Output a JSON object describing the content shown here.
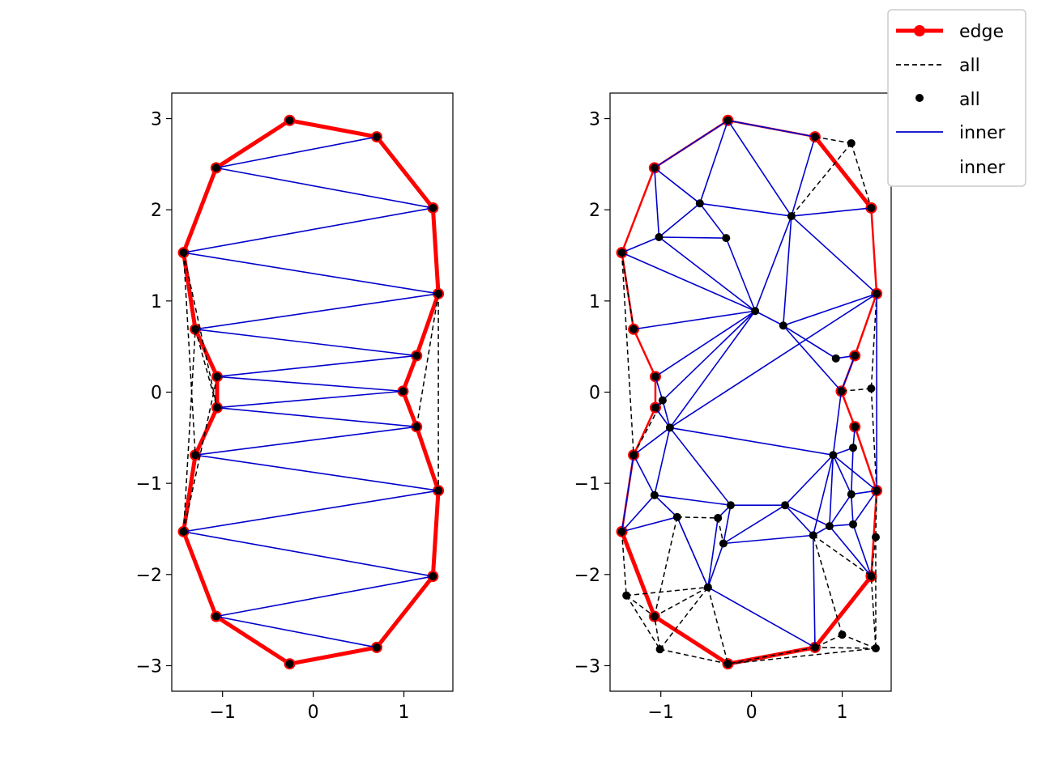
{
  "colors": {
    "edge": "#ff0000",
    "all": "#000000",
    "inner": "#0000cc",
    "background": "#ffffff",
    "legend_border": "#cccccc"
  },
  "legend": {
    "placement": "top-right",
    "entries": [
      {
        "label": "edge",
        "style": "thick-red-line-with-markers"
      },
      {
        "label": "all",
        "style": "dashed-black-line"
      },
      {
        "label": "all",
        "style": "black-dot"
      },
      {
        "label": "inner",
        "style": "thin-blue-line"
      },
      {
        "label": "inner",
        "style": "none"
      }
    ]
  },
  "chart_data": [
    {
      "type": "line",
      "title": "",
      "xlabel": "",
      "ylabel": "",
      "xlim": [
        -1.56,
        1.54
      ],
      "ylim": [
        -3.28,
        3.28
      ],
      "xticks": [
        -1,
        0,
        1
      ],
      "yticks": [
        -3,
        -2,
        -1,
        0,
        1,
        2,
        3
      ],
      "grid": false,
      "points": [
        [
          -0.26,
          2.98
        ],
        [
          0.7,
          2.8
        ],
        [
          1.32,
          2.02
        ],
        [
          1.38,
          1.08
        ],
        [
          1.14,
          0.4
        ],
        [
          0.99,
          0.01
        ],
        [
          1.14,
          -0.38
        ],
        [
          1.38,
          -1.08
        ],
        [
          1.32,
          -2.02
        ],
        [
          0.7,
          -2.8
        ],
        [
          -0.26,
          -2.98
        ],
        [
          -1.07,
          -2.46
        ],
        [
          -1.43,
          -1.53
        ],
        [
          -1.3,
          -0.69
        ],
        [
          -1.06,
          -0.17
        ],
        [
          -1.06,
          0.17
        ],
        [
          -1.3,
          0.69
        ],
        [
          -1.43,
          1.53
        ],
        [
          -1.07,
          2.46
        ]
      ],
      "edge_path": [
        0,
        1,
        2,
        3,
        4,
        5,
        6,
        7,
        8,
        9,
        10,
        11,
        12,
        13,
        14,
        15,
        16,
        17,
        18,
        0
      ],
      "all_segments": [
        [
          17,
          13
        ],
        [
          17,
          14
        ],
        [
          16,
          14
        ],
        [
          3,
          6
        ],
        [
          3,
          7
        ],
        [
          12,
          15
        ],
        [
          12,
          16
        ]
      ],
      "inner_segments": [
        [
          18,
          1
        ],
        [
          18,
          2
        ],
        [
          17,
          2
        ],
        [
          17,
          3
        ],
        [
          16,
          3
        ],
        [
          16,
          4
        ],
        [
          15,
          4
        ],
        [
          15,
          5
        ],
        [
          14,
          5
        ],
        [
          14,
          6
        ],
        [
          13,
          6
        ],
        [
          13,
          7
        ],
        [
          12,
          7
        ],
        [
          12,
          8
        ],
        [
          11,
          8
        ],
        [
          11,
          9
        ]
      ]
    },
    {
      "type": "line",
      "title": "",
      "xlabel": "",
      "ylabel": "",
      "xlim": [
        -1.56,
        1.54
      ],
      "ylim": [
        -3.28,
        3.28
      ],
      "xticks": [
        -1,
        0,
        1
      ],
      "yticks": [
        -3,
        -2,
        -1,
        0,
        1,
        2,
        3
      ],
      "grid": false,
      "points": [
        [
          -0.26,
          2.98
        ],
        [
          0.7,
          2.8
        ],
        [
          1.32,
          2.02
        ],
        [
          1.38,
          1.08
        ],
        [
          1.14,
          0.4
        ],
        [
          0.99,
          0.01
        ],
        [
          1.14,
          -0.38
        ],
        [
          1.38,
          -1.08
        ],
        [
          1.32,
          -2.02
        ],
        [
          0.7,
          -2.8
        ],
        [
          -0.26,
          -2.98
        ],
        [
          -1.07,
          -2.46
        ],
        [
          -1.43,
          -1.53
        ],
        [
          -1.3,
          -0.69
        ],
        [
          -1.06,
          -0.17
        ],
        [
          -1.06,
          0.17
        ],
        [
          -1.3,
          0.69
        ],
        [
          -1.43,
          1.53
        ],
        [
          -1.07,
          2.46
        ],
        [
          1.1,
          2.73
        ],
        [
          -0.57,
          2.07
        ],
        [
          0.44,
          1.93
        ],
        [
          -1.02,
          1.7
        ],
        [
          -0.28,
          1.69
        ],
        [
          0.04,
          0.89
        ],
        [
          0.35,
          0.73
        ],
        [
          0.93,
          0.37
        ],
        [
          1.32,
          0.04
        ],
        [
          -0.98,
          -0.09
        ],
        [
          -0.9,
          -0.39
        ],
        [
          1.12,
          -0.61
        ],
        [
          0.9,
          -0.69
        ],
        [
          1.1,
          -1.12
        ],
        [
          -1.07,
          -1.13
        ],
        [
          -0.23,
          -1.24
        ],
        [
          0.37,
          -1.24
        ],
        [
          -0.82,
          -1.37
        ],
        [
          -0.37,
          -1.38
        ],
        [
          0.86,
          -1.47
        ],
        [
          1.12,
          -1.45
        ],
        [
          1.37,
          -1.59
        ],
        [
          -0.31,
          -1.66
        ],
        [
          0.68,
          -1.57
        ],
        [
          -1.38,
          -2.23
        ],
        [
          -0.48,
          -2.14
        ],
        [
          1.0,
          -2.66
        ],
        [
          -1.01,
          -2.82
        ],
        [
          1.37,
          -2.81
        ]
      ],
      "edge_path": [
        1,
        2,
        3,
        4,
        5,
        6,
        7,
        8,
        9,
        10,
        11,
        12,
        13,
        14,
        15,
        16,
        17,
        18,
        0,
        1
      ],
      "edge_thick_segments": [
        [
          1,
          2
        ],
        [
          8,
          9
        ],
        [
          9,
          10
        ],
        [
          10,
          11
        ],
        [
          11,
          12
        ]
      ],
      "all_segments": [
        [
          1,
          19
        ],
        [
          19,
          2
        ],
        [
          19,
          21
        ],
        [
          17,
          13
        ],
        [
          17,
          16
        ],
        [
          3,
          27
        ],
        [
          27,
          5
        ],
        [
          27,
          7
        ],
        [
          7,
          40
        ],
        [
          40,
          8
        ],
        [
          40,
          47
        ],
        [
          47,
          8
        ],
        [
          47,
          9
        ],
        [
          47,
          45
        ],
        [
          45,
          9
        ],
        [
          45,
          42
        ],
        [
          42,
          38
        ],
        [
          42,
          8
        ],
        [
          12,
          43
        ],
        [
          43,
          11
        ],
        [
          43,
          44
        ],
        [
          43,
          46
        ],
        [
          46,
          10
        ],
        [
          46,
          44
        ],
        [
          46,
          11
        ],
        [
          44,
          10
        ],
        [
          44,
          11
        ],
        [
          36,
          33
        ],
        [
          36,
          37
        ],
        [
          36,
          44
        ],
        [
          36,
          11
        ],
        [
          37,
          41
        ],
        [
          9,
          10
        ],
        [
          10,
          47
        ],
        [
          29,
          14
        ],
        [
          28,
          13
        ]
      ],
      "inner_segments": [
        [
          0,
          18
        ],
        [
          0,
          20
        ],
        [
          0,
          21
        ],
        [
          0,
          1
        ],
        [
          1,
          21
        ],
        [
          18,
          22
        ],
        [
          18,
          20
        ],
        [
          20,
          22
        ],
        [
          20,
          23
        ],
        [
          20,
          21
        ],
        [
          22,
          23
        ],
        [
          22,
          17
        ],
        [
          22,
          24
        ],
        [
          23,
          24
        ],
        [
          24,
          21
        ],
        [
          21,
          25
        ],
        [
          21,
          2
        ],
        [
          21,
          3
        ],
        [
          17,
          24
        ],
        [
          16,
          24
        ],
        [
          24,
          25
        ],
        [
          25,
          3
        ],
        [
          25,
          26
        ],
        [
          25,
          5
        ],
        [
          26,
          4
        ],
        [
          5,
          4
        ],
        [
          24,
          15
        ],
        [
          24,
          28
        ],
        [
          24,
          29
        ],
        [
          15,
          28
        ],
        [
          28,
          29
        ],
        [
          29,
          14
        ],
        [
          29,
          13
        ],
        [
          29,
          3
        ],
        [
          29,
          33
        ],
        [
          29,
          34
        ],
        [
          29,
          31
        ],
        [
          3,
          7
        ],
        [
          5,
          31
        ],
        [
          6,
          30
        ],
        [
          30,
          31
        ],
        [
          31,
          7
        ],
        [
          30,
          32
        ],
        [
          32,
          7
        ],
        [
          31,
          32
        ],
        [
          31,
          35
        ],
        [
          31,
          38
        ],
        [
          32,
          38
        ],
        [
          32,
          39
        ],
        [
          39,
          8
        ],
        [
          38,
          39
        ],
        [
          7,
          39
        ],
        [
          35,
          38
        ],
        [
          35,
          34
        ],
        [
          35,
          42
        ],
        [
          35,
          41
        ],
        [
          34,
          37
        ],
        [
          34,
          41
        ],
        [
          34,
          33
        ],
        [
          33,
          13
        ],
        [
          33,
          12
        ],
        [
          36,
          44
        ],
        [
          37,
          44
        ],
        [
          41,
          42
        ],
        [
          41,
          44
        ],
        [
          44,
          9
        ],
        [
          42,
          9
        ],
        [
          42,
          38
        ],
        [
          38,
          8
        ],
        [
          33,
          36
        ],
        [
          12,
          13
        ],
        [
          12,
          36
        ],
        [
          28,
          14
        ],
        [
          31,
          42
        ]
      ]
    }
  ]
}
